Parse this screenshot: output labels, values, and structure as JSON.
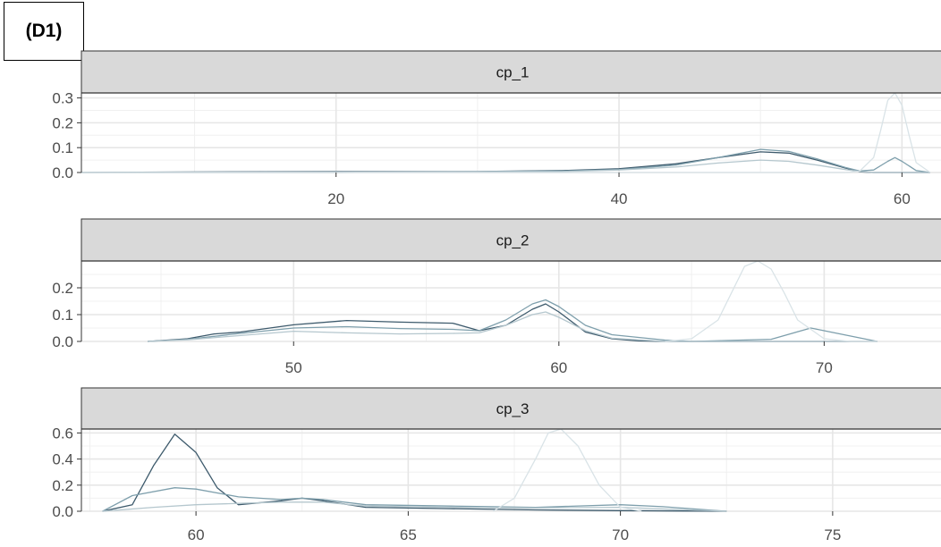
{
  "panel_label": "(D1)",
  "chart_data": [
    {
      "type": "line",
      "title": "cp_1",
      "xlim": [
        2,
        62
      ],
      "ylim": [
        0,
        0.32
      ],
      "xticks": [
        20,
        40,
        60
      ],
      "yticks": [
        0.0,
        0.1,
        0.2,
        0.3
      ],
      "ytick_labels": [
        "0.0",
        "0.1",
        "0.2",
        "0.3"
      ],
      "grid": true,
      "series": [
        {
          "color": "#3d5a6c",
          "x": [
            2,
            10,
            20,
            30,
            36,
            40,
            44,
            47,
            50,
            52,
            54,
            56,
            57,
            58,
            59,
            60,
            61,
            62
          ],
          "y": [
            0.0,
            0.002,
            0.004,
            0.004,
            0.008,
            0.015,
            0.035,
            0.06,
            0.083,
            0.078,
            0.05,
            0.018,
            0.003,
            0.0,
            0.0,
            0.0,
            0.0,
            0.0
          ]
        },
        {
          "color": "#7e9fac",
          "x": [
            2,
            20,
            36,
            40,
            44,
            47,
            50,
            52,
            54,
            56,
            57,
            58,
            59,
            59.5,
            60,
            61,
            62
          ],
          "y": [
            0.0,
            0.0,
            0.006,
            0.012,
            0.03,
            0.06,
            0.093,
            0.085,
            0.055,
            0.02,
            0.006,
            0.01,
            0.045,
            0.06,
            0.045,
            0.008,
            0.0
          ]
        },
        {
          "color": "#b5c7ce",
          "x": [
            2,
            36,
            40,
            44,
            47,
            50,
            52,
            54,
            56,
            57,
            58,
            62
          ],
          "y": [
            0.0,
            0.004,
            0.01,
            0.022,
            0.038,
            0.05,
            0.045,
            0.03,
            0.012,
            0.004,
            0.0,
            0.0
          ]
        },
        {
          "color": "#d9e3e7",
          "x": [
            2,
            56,
            57,
            58,
            58.5,
            59,
            59.5,
            60,
            60.5,
            61,
            62
          ],
          "y": [
            0.0,
            0.0,
            0.005,
            0.06,
            0.17,
            0.29,
            0.32,
            0.27,
            0.15,
            0.04,
            0.0
          ]
        }
      ]
    },
    {
      "type": "line",
      "title": "cp_2",
      "xlim": [
        42,
        74
      ],
      "ylim": [
        0,
        0.3
      ],
      "xticks": [
        50,
        60,
        70
      ],
      "yticks": [
        0.0,
        0.1,
        0.2
      ],
      "ytick_labels": [
        "0.0",
        "0.1",
        "0.2"
      ],
      "grid": true,
      "series": [
        {
          "color": "#3d5a6c",
          "x": [
            44.5,
            46,
            47,
            48,
            50,
            52,
            54,
            56,
            57,
            58,
            59,
            59.5,
            60,
            61,
            62,
            63,
            64,
            65,
            68,
            72
          ],
          "y": [
            0.0,
            0.01,
            0.028,
            0.035,
            0.062,
            0.078,
            0.072,
            0.068,
            0.04,
            0.06,
            0.12,
            0.14,
            0.11,
            0.035,
            0.01,
            0.002,
            0.0,
            0.0,
            0.0,
            0.0
          ]
        },
        {
          "color": "#7e9fac",
          "x": [
            44.5,
            46,
            48,
            50,
            52,
            54,
            56,
            57,
            58,
            59,
            59.5,
            60,
            61,
            62,
            64,
            65,
            68,
            69.5,
            71,
            72
          ],
          "y": [
            0.0,
            0.008,
            0.03,
            0.05,
            0.055,
            0.048,
            0.045,
            0.04,
            0.08,
            0.14,
            0.155,
            0.13,
            0.06,
            0.025,
            0.005,
            0.0,
            0.008,
            0.05,
            0.02,
            0.0
          ]
        },
        {
          "color": "#b5c7ce",
          "x": [
            44.5,
            46,
            48,
            50,
            52,
            54,
            56,
            57,
            58,
            59,
            59.5,
            60,
            61,
            62,
            64,
            65,
            72
          ],
          "y": [
            0.0,
            0.006,
            0.022,
            0.038,
            0.032,
            0.028,
            0.03,
            0.032,
            0.06,
            0.1,
            0.11,
            0.09,
            0.04,
            0.012,
            0.0,
            0.0,
            0.0
          ]
        },
        {
          "color": "#d9e3e7",
          "x": [
            64,
            65,
            66,
            66.5,
            67,
            67.5,
            68,
            68.5,
            69,
            70,
            71,
            72
          ],
          "y": [
            0.0,
            0.01,
            0.08,
            0.18,
            0.28,
            0.3,
            0.27,
            0.18,
            0.08,
            0.01,
            0.0,
            0.0
          ]
        }
      ]
    },
    {
      "type": "line",
      "title": "cp_3",
      "xlim": [
        57.3,
        77.3
      ],
      "ylim": [
        0,
        0.63
      ],
      "xticks": [
        60,
        65,
        70,
        75
      ],
      "yticks": [
        0.0,
        0.2,
        0.4,
        0.6
      ],
      "ytick_labels": [
        "0.0",
        "0.2",
        "0.4",
        "0.6"
      ],
      "grid": true,
      "series": [
        {
          "color": "#3d5a6c",
          "x": [
            57.8,
            58.5,
            59,
            59.5,
            60,
            60.5,
            61,
            62,
            62.5,
            63,
            64,
            66,
            68,
            70,
            72.5
          ],
          "y": [
            0.0,
            0.05,
            0.35,
            0.59,
            0.45,
            0.18,
            0.05,
            0.08,
            0.1,
            0.08,
            0.03,
            0.02,
            0.01,
            0.005,
            0.0
          ]
        },
        {
          "color": "#7e9fac",
          "x": [
            57.8,
            58.5,
            59.5,
            60,
            61,
            62,
            62.5,
            63,
            64,
            66,
            68,
            70,
            71,
            72.5
          ],
          "y": [
            0.0,
            0.12,
            0.18,
            0.17,
            0.11,
            0.09,
            0.1,
            0.09,
            0.05,
            0.04,
            0.03,
            0.05,
            0.035,
            0.0
          ]
        },
        {
          "color": "#b5c7ce",
          "x": [
            57.8,
            59,
            60,
            61,
            62,
            63,
            64,
            66,
            68,
            70,
            72.5
          ],
          "y": [
            0.0,
            0.03,
            0.05,
            0.06,
            0.07,
            0.07,
            0.04,
            0.03,
            0.025,
            0.03,
            0.0
          ]
        },
        {
          "color": "#d9e3e7",
          "x": [
            67,
            67.5,
            68,
            68.3,
            68.6,
            69,
            69.5,
            70,
            70.5
          ],
          "y": [
            0.0,
            0.1,
            0.4,
            0.6,
            0.63,
            0.5,
            0.2,
            0.03,
            0.0
          ]
        }
      ]
    }
  ]
}
